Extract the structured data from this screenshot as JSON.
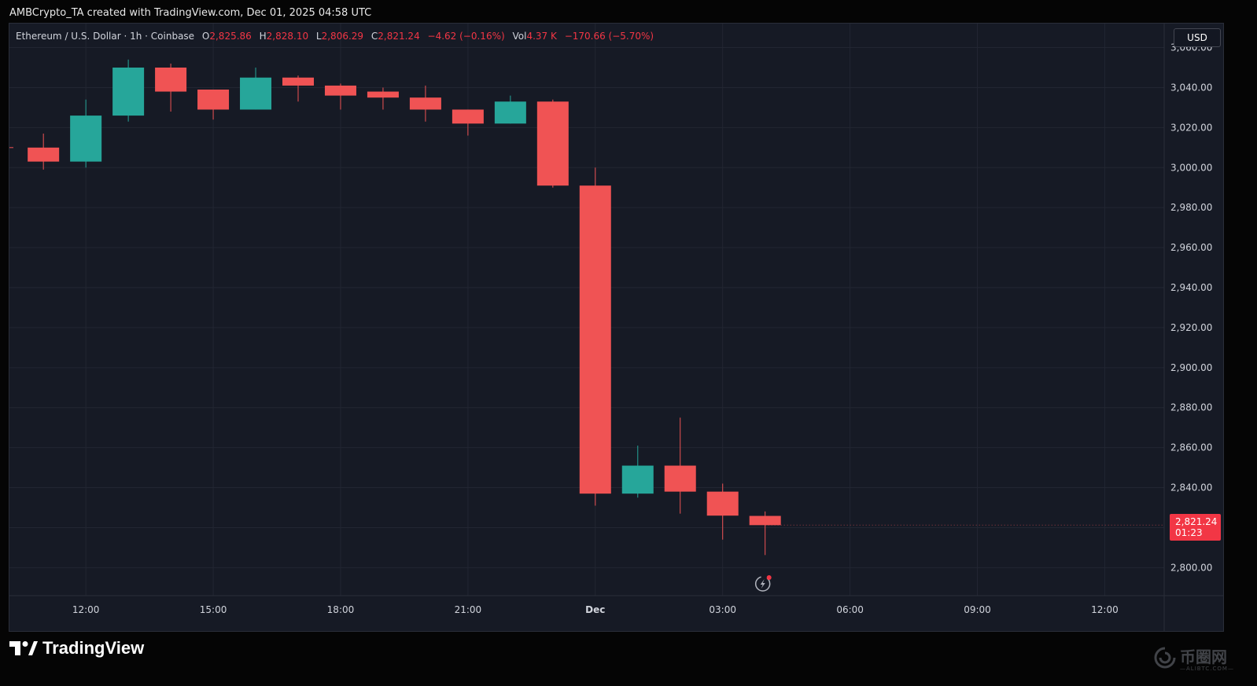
{
  "header": {
    "caption": "AMBCrypto_TA created with TradingView.com, Dec 01, 2025 04:58 UTC"
  },
  "legend": {
    "symbol": "Ethereum / U.S. Dollar · 1h · Coinbase",
    "o_label": "O",
    "o_value": "2,825.86",
    "h_label": "H",
    "h_value": "2,828.10",
    "l_label": "L",
    "l_value": "2,806.29",
    "c_label": "C",
    "c_value": "2,821.24",
    "change": "−4.62 (−0.16%)",
    "vol_label": "Vol",
    "vol_value": "4.37 K",
    "vol_change": "−170.66 (−5.70%)"
  },
  "currency_button": "USD",
  "last_price": {
    "price": "2,821.24",
    "countdown": "01:23"
  },
  "footer": {
    "brand": "TradingView",
    "watermark": "币圈网",
    "watermark_sub": "—ALIBTC.COM—"
  },
  "colors": {
    "up": "#26a69a",
    "down": "#f05354",
    "background": "#161a25",
    "grid": "#222632",
    "axis_text": "#d1d4dc"
  },
  "chart_data": {
    "type": "candlestick",
    "title": "",
    "ylabel": "",
    "ylim": [
      2786,
      3072
    ],
    "y_ticks": [
      2800,
      2820,
      2840,
      2860,
      2880,
      2900,
      2920,
      2940,
      2960,
      2980,
      3000,
      3020,
      3040,
      3060
    ],
    "y_tick_labels": [
      "2,800.00",
      "2,820.00",
      "2,840.00",
      "2,860.00",
      "2,880.00",
      "2,900.00",
      "2,920.00",
      "2,940.00",
      "2,960.00",
      "2,980.00",
      "3,000.00",
      "3,020.00",
      "3,040.00",
      "3,060.00"
    ],
    "x_tick_labels": [
      "12:00",
      "15:00",
      "18:00",
      "21:00",
      "Dec",
      "03:00",
      "06:00",
      "09:00",
      "12:00"
    ],
    "x_tick_hours": [
      12,
      15,
      18,
      21,
      24,
      27,
      30,
      33,
      36
    ],
    "x_range_hours": [
      10.2,
      37.4
    ],
    "grid": true,
    "candles": [
      {
        "hour": 11,
        "open": 3010,
        "high": 3017,
        "low": 2999,
        "close": 3003
      },
      {
        "hour": 12,
        "open": 3003,
        "high": 3034,
        "low": 3000,
        "close": 3026
      },
      {
        "hour": 13,
        "open": 3026,
        "high": 3054,
        "low": 3023,
        "close": 3050
      },
      {
        "hour": 14,
        "open": 3050,
        "high": 3052,
        "low": 3028,
        "close": 3038
      },
      {
        "hour": 15,
        "open": 3039,
        "high": 3039,
        "low": 3024,
        "close": 3029
      },
      {
        "hour": 16,
        "open": 3029,
        "high": 3050,
        "low": 3029,
        "close": 3045
      },
      {
        "hour": 17,
        "open": 3045,
        "high": 3046,
        "low": 3033,
        "close": 3041
      },
      {
        "hour": 18,
        "open": 3041,
        "high": 3042,
        "low": 3029,
        "close": 3036
      },
      {
        "hour": 19,
        "open": 3038,
        "high": 3040,
        "low": 3029,
        "close": 3035
      },
      {
        "hour": 20,
        "open": 3035,
        "high": 3041,
        "low": 3023,
        "close": 3029
      },
      {
        "hour": 21,
        "open": 3029,
        "high": 3029,
        "low": 3016,
        "close": 3022
      },
      {
        "hour": 22,
        "open": 3022,
        "high": 3036,
        "low": 3022,
        "close": 3033
      },
      {
        "hour": 23,
        "open": 3033,
        "high": 3034,
        "low": 2990,
        "close": 2991
      },
      {
        "hour": 24,
        "open": 2991,
        "high": 3000,
        "low": 2831,
        "close": 2837
      },
      {
        "hour": 25,
        "open": 2837,
        "high": 2861,
        "low": 2835,
        "close": 2851
      },
      {
        "hour": 26,
        "open": 2851,
        "high": 2875,
        "low": 2827,
        "close": 2838
      },
      {
        "hour": 27,
        "open": 2838,
        "high": 2842,
        "low": 2814,
        "close": 2826
      },
      {
        "hour": 28,
        "open": 2825.86,
        "high": 2828.1,
        "low": 2806.29,
        "close": 2821.24
      }
    ]
  }
}
